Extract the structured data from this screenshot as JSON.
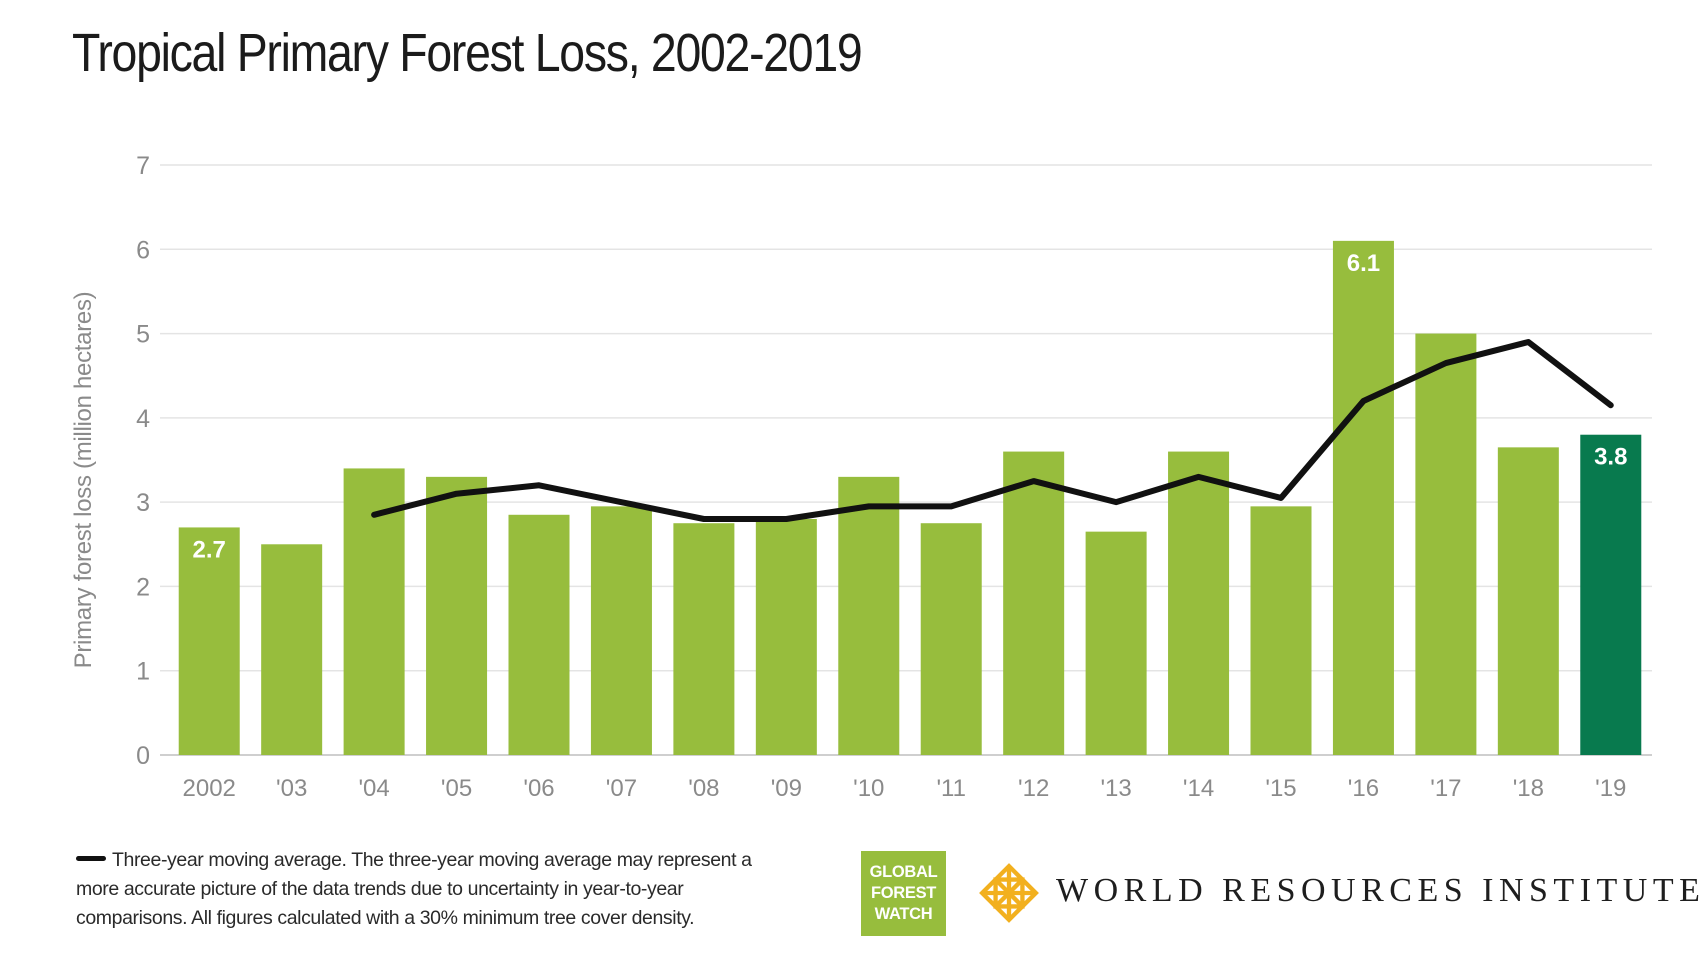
{
  "title": "Tropical Primary Forest Loss, 2002-2019",
  "legend": {
    "text": "Three-year moving average. The three-year moving average may represent a more accurate picture of the data trends due to uncertainty in year-to-year comparisons. All figures calculated with a 30% minimum tree cover density."
  },
  "logos": {
    "gfw": [
      "GLOBAL",
      "FOREST",
      "WATCH"
    ],
    "wri": "WORLD RESOURCES INSTITUTE"
  },
  "colors": {
    "bar": "#97bd3d",
    "bar_highlight": "#087a4e",
    "line": "#111111",
    "grid": "#e4e4e4",
    "axis_text": "#8a8a8a",
    "wri_mark": "#f2b01e"
  },
  "chart_data": {
    "type": "bar",
    "title": "Tropical Primary Forest Loss, 2002-2019",
    "xlabel": "",
    "ylabel": "Primary forest loss (million hectares)",
    "ylim": [
      0,
      7
    ],
    "yticks": [
      0,
      1,
      2,
      3,
      4,
      5,
      6,
      7
    ],
    "grid": true,
    "categories": [
      "2002",
      "'03",
      "'04",
      "'05",
      "'06",
      "'07",
      "'08",
      "'09",
      "'10",
      "'11",
      "'12",
      "'13",
      "'14",
      "'15",
      "'16",
      "'17",
      "'18",
      "'19"
    ],
    "series": [
      {
        "kind": "bar",
        "values": [
          2.7,
          2.5,
          3.4,
          3.3,
          2.85,
          2.95,
          2.75,
          2.8,
          3.3,
          2.75,
          3.6,
          2.65,
          3.6,
          2.95,
          6.1,
          5.0,
          3.65,
          3.8
        ]
      },
      {
        "kind": "line",
        "values": [
          null,
          null,
          2.85,
          3.1,
          3.2,
          3.0,
          2.8,
          2.8,
          2.95,
          2.95,
          3.25,
          3.0,
          3.3,
          3.05,
          4.2,
          4.65,
          4.9,
          4.15
        ]
      }
    ],
    "data_labels": [
      {
        "category": "2002",
        "text": "2.7"
      },
      {
        "category": "'16",
        "text": "6.1"
      },
      {
        "category": "'19",
        "text": "3.8"
      }
    ],
    "highlight_category": "'19"
  }
}
